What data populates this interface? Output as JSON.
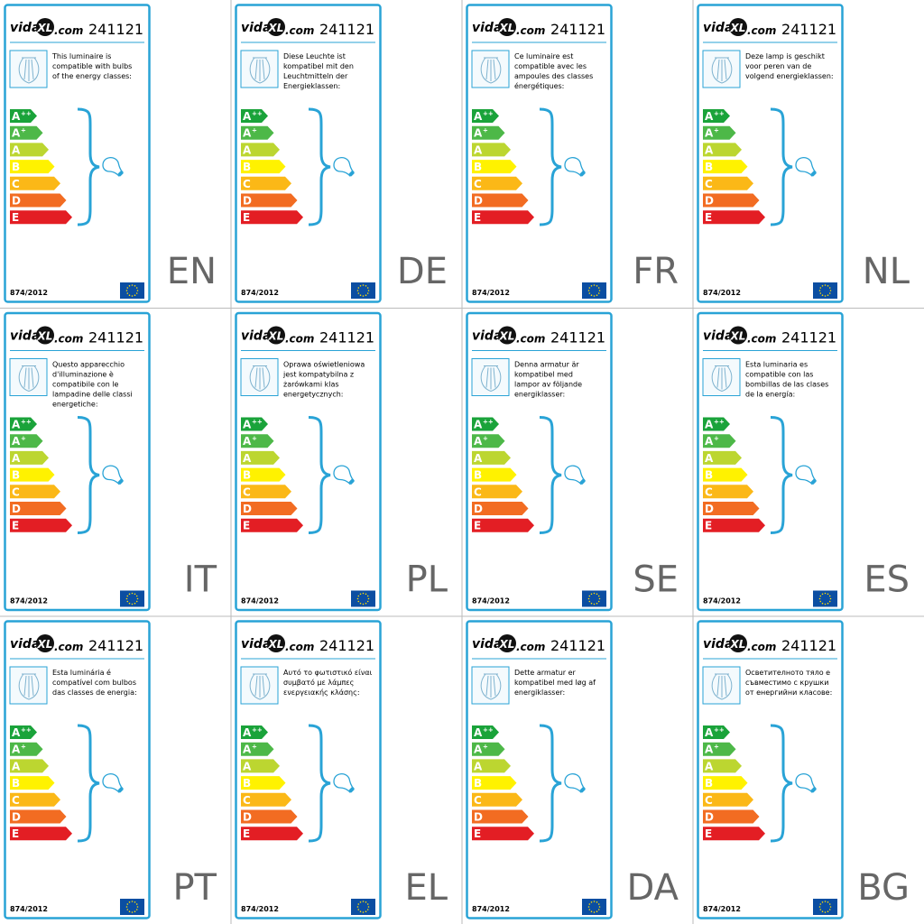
{
  "logo": {
    "part1": "vida",
    "part2": "XL",
    "part3": ".com"
  },
  "product_number": "241121",
  "regulation": "874/2012",
  "energy_classes": [
    {
      "letter": "A",
      "sup": "++",
      "color": "#1aa33a"
    },
    {
      "letter": "A",
      "sup": "+",
      "color": "#4db848"
    },
    {
      "letter": "A",
      "color": "#bcd630"
    },
    {
      "letter": "B",
      "color": "#fff200"
    },
    {
      "letter": "C",
      "color": "#fbb817"
    },
    {
      "letter": "D",
      "color": "#f26c22"
    },
    {
      "letter": "E",
      "color": "#e31e24"
    }
  ],
  "labels": [
    {
      "lang": "EN",
      "text": [
        "This luminaire is",
        "compatible with bulbs",
        "of the energy classes:"
      ]
    },
    {
      "lang": "DE",
      "text": [
        "Diese Leuchte ist",
        "kompatibel mit den",
        "Leuchtmitteln der",
        "Energieklassen:"
      ]
    },
    {
      "lang": "FR",
      "text": [
        "Ce luminaire est",
        "compatible avec les",
        "ampoules des classes",
        "énergétiques:"
      ]
    },
    {
      "lang": "NL",
      "text": [
        "Deze lamp is geschikt",
        "voor peren van de",
        "volgend energieklassen:"
      ]
    },
    {
      "lang": "IT",
      "text": [
        "Questo apparecchio",
        "d'illuminazione è",
        "compatibile con le",
        "lampadine delle classi",
        "energetiche:"
      ]
    },
    {
      "lang": "PL",
      "text": [
        "Oprawa oświetleniowa",
        "jest kompatybilna z",
        "żarówkami klas",
        "energetycznych:"
      ]
    },
    {
      "lang": "SE",
      "text": [
        "Denna armatur är",
        "kompatibel med",
        "lampor av följande",
        "energiklasser:"
      ]
    },
    {
      "lang": "ES",
      "text": [
        "Esta luminaria es",
        "compatible con las",
        "bombillas de las clases",
        "de la energía:"
      ]
    },
    {
      "lang": "PT",
      "text": [
        "Esta luminária é",
        "compatível com bulbos",
        "das classes de energia:"
      ]
    },
    {
      "lang": "EL",
      "text": [
        "Αυτό το φωτιστικό είναι",
        "συμβατό με λάμπες",
        "ενεργειακής κλάσης:"
      ]
    },
    {
      "lang": "DA",
      "text": [
        "Dette armatur er",
        "kompatibel med løg af",
        "energiklasser:"
      ]
    },
    {
      "lang": "BG",
      "text": [
        "Осветителното тяло е",
        "съвместимо с крушки",
        "от енергийни класове:"
      ]
    }
  ]
}
